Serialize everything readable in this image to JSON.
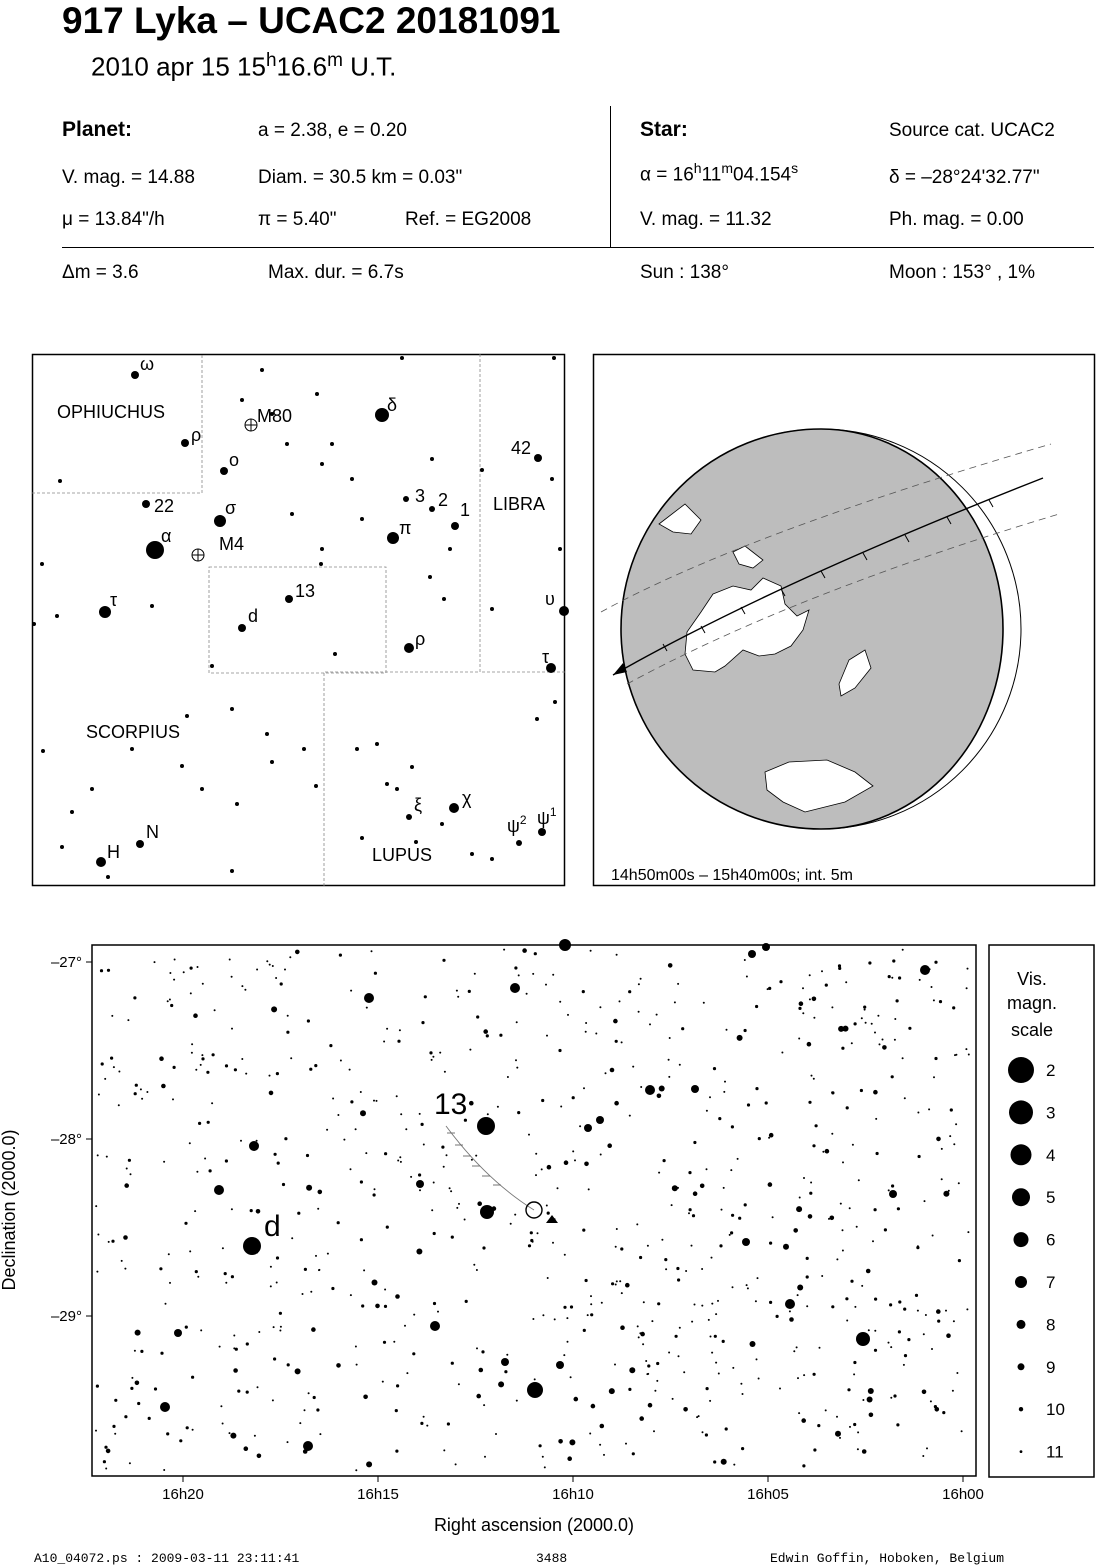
{
  "header": {
    "title": "917 Lyka  –  UCAC2 20181091",
    "date_text": "2010 apr 15  15",
    "time_h_sup": "h",
    "time_min": "16.6",
    "time_m_sup": "m",
    "time_suffix": " U.T."
  },
  "planet": {
    "heading": "Planet:",
    "orbit": "a = 2.38, e = 0.20",
    "vmag": "V. mag. = 14.88",
    "diam": "Diam. = 30.5 km = 0.03\"",
    "mu": "μ =  13.84\"/h",
    "parallax": "π =  5.40\"",
    "ref": "Ref. = EG2008"
  },
  "star": {
    "heading": "Star:",
    "source": "Source cat.  UCAC2",
    "ra_prefix": "α = 16",
    "ra_h": "h",
    "ra_min": "11",
    "ra_m": "m",
    "ra_sec": "04.154",
    "ra_s": "s",
    "dec": "δ = –28°24'32.77\"",
    "vmag": "V. mag. = 11.32",
    "phmag": "Ph. mag. =  0.00"
  },
  "event": {
    "dm": "Δm = 3.6",
    "maxdur": "Max. dur. = 6.7s",
    "sun": "Sun : 138°",
    "moon": "Moon : 153° ,  1%"
  },
  "finder": {
    "constellations": [
      "OPHIUCHUS",
      "LIBRA",
      "SCORPIUS",
      "LUPUS"
    ],
    "labels": {
      "omega": "ω",
      "rho_oph": "ρ",
      "M80": "M80",
      "delta": "δ",
      "omicron": "o",
      "n42": "42",
      "n22": "22",
      "sigma": "σ",
      "n3": "3",
      "n2": "2",
      "n1": "1",
      "alpha": "α",
      "M4": "M4",
      "pi": "π",
      "n13": "13",
      "tau_sco": "τ",
      "d": "d",
      "upsilon": "υ",
      "rho_sco": "ρ",
      "tau_lib": "τ",
      "chi": "χ",
      "xi": "ξ",
      "psi2": "ψ",
      "psi2_sup": "2",
      "psi1": "ψ",
      "psi1_sup": "1",
      "N": "N",
      "H": "H"
    }
  },
  "globe": {
    "caption": "14h50m00s – 15h40m00s; int.  5m"
  },
  "detail": {
    "label_13": "13",
    "label_d": "d",
    "dec_ticks": [
      "–27°",
      "–28°",
      "–29°"
    ],
    "ra_ticks": [
      "16h20",
      "16h15",
      "16h10",
      "16h05",
      "16h00"
    ],
    "ylabel": "Declination (2000.0)",
    "xlabel": "Right ascension (2000.0)"
  },
  "scale": {
    "title": [
      "Vis.",
      "magn.",
      "scale"
    ],
    "mags": [
      "2",
      "3",
      "4",
      "5",
      "6",
      "7",
      "8",
      "9",
      "10",
      "11"
    ]
  },
  "footer": {
    "left": "A10_04072.ps : 2009-03-11 23:11:41",
    "mid": "3488",
    "right": "Edwin Goffin, Hoboken, Belgium"
  }
}
